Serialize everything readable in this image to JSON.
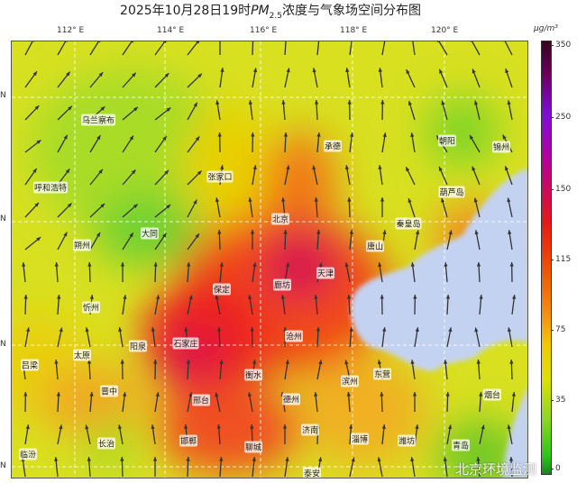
{
  "title": {
    "prefix": "2025年10月28日19时",
    "pm": "PM",
    "sub": "2.5",
    "suffix": "浓度与气象场空间分布图"
  },
  "longitude_labels": [
    "112° E",
    "114° E",
    "116° E",
    "118° E",
    "120° E"
  ],
  "latitude_labels": [
    "N",
    "N",
    "N",
    "N"
  ],
  "colorbar": {
    "unit": "μg/m³",
    "ticks": [
      "350",
      "250",
      "150",
      "115",
      "75",
      "35",
      "0"
    ],
    "colors": [
      "#3a0020",
      "#7a10d8",
      "#e81818",
      "#f04010",
      "#f08a10",
      "#dde000",
      "#30c020"
    ]
  },
  "cities": [
    "乌兰察布",
    "呼和浩特",
    "张家口",
    "承德",
    "朝阳",
    "锦州",
    "朔州",
    "大同",
    "北京",
    "葫芦岛",
    "秦皇岛",
    "唐山",
    "天津",
    "廊坊",
    "保定",
    "忻州",
    "太原",
    "阳泉",
    "石家庄",
    "吕梁",
    "衡水",
    "晋中",
    "沧州",
    "滨州",
    "东营",
    "烟台",
    "邢台",
    "德州",
    "济南",
    "淄博",
    "潍坊",
    "青岛",
    "长治",
    "邯郸",
    "聊城",
    "临汾",
    "泰安"
  ],
  "sea_color": "#c4d2f2",
  "watermark": "北京环境监测"
}
